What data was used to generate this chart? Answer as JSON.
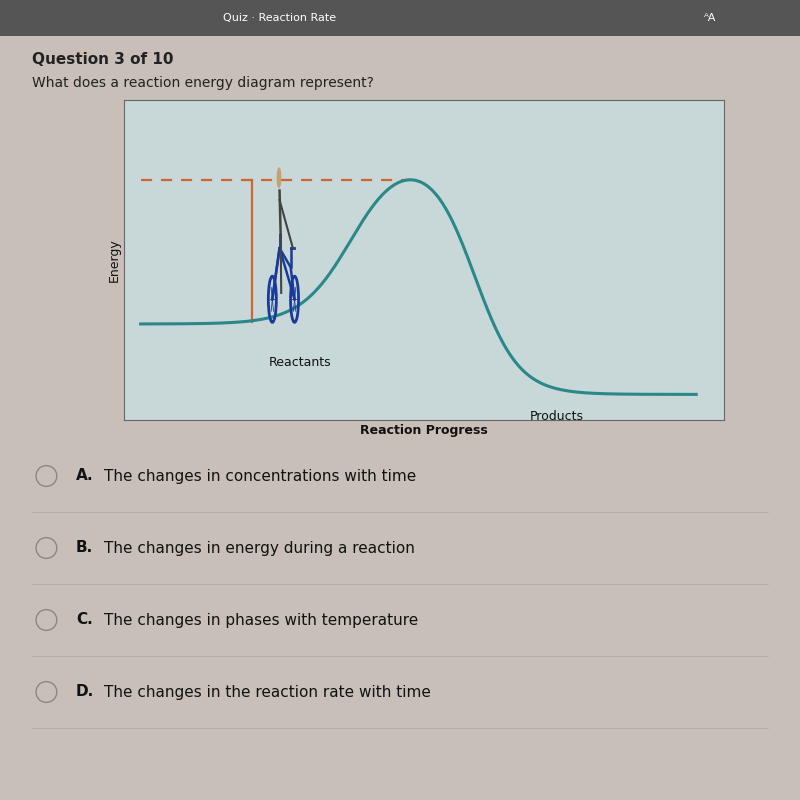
{
  "question_header": "Question 3 of 10",
  "question_text": "What does a reaction energy diagram represent?",
  "bg_color": "#c8c0b8",
  "top_bar_color": "#555555",
  "chart_bg_color": "#c8d8d8",
  "chart_border_color": "#888888",
  "curve_color": "#2a8888",
  "dashed_line_color": "#cc6633",
  "vertical_line_color": "#cc6633",
  "xlabel": "Reaction Progress",
  "ylabel": "Energy",
  "reactants_label": "Reactants",
  "products_label": "Products",
  "choices": [
    {
      "letter": "A",
      "text": "The changes in concentrations with time"
    },
    {
      "letter": "B",
      "text": "The changes in energy during a reaction"
    },
    {
      "letter": "C",
      "text": "The changes in phases with temperature"
    },
    {
      "letter": "D",
      "text": "The changes in the reaction rate with time"
    }
  ],
  "header_fontsize": 11,
  "question_fontsize": 10,
  "axis_label_fontsize": 9,
  "choice_fontsize": 11,
  "chart_label_fontsize": 9
}
